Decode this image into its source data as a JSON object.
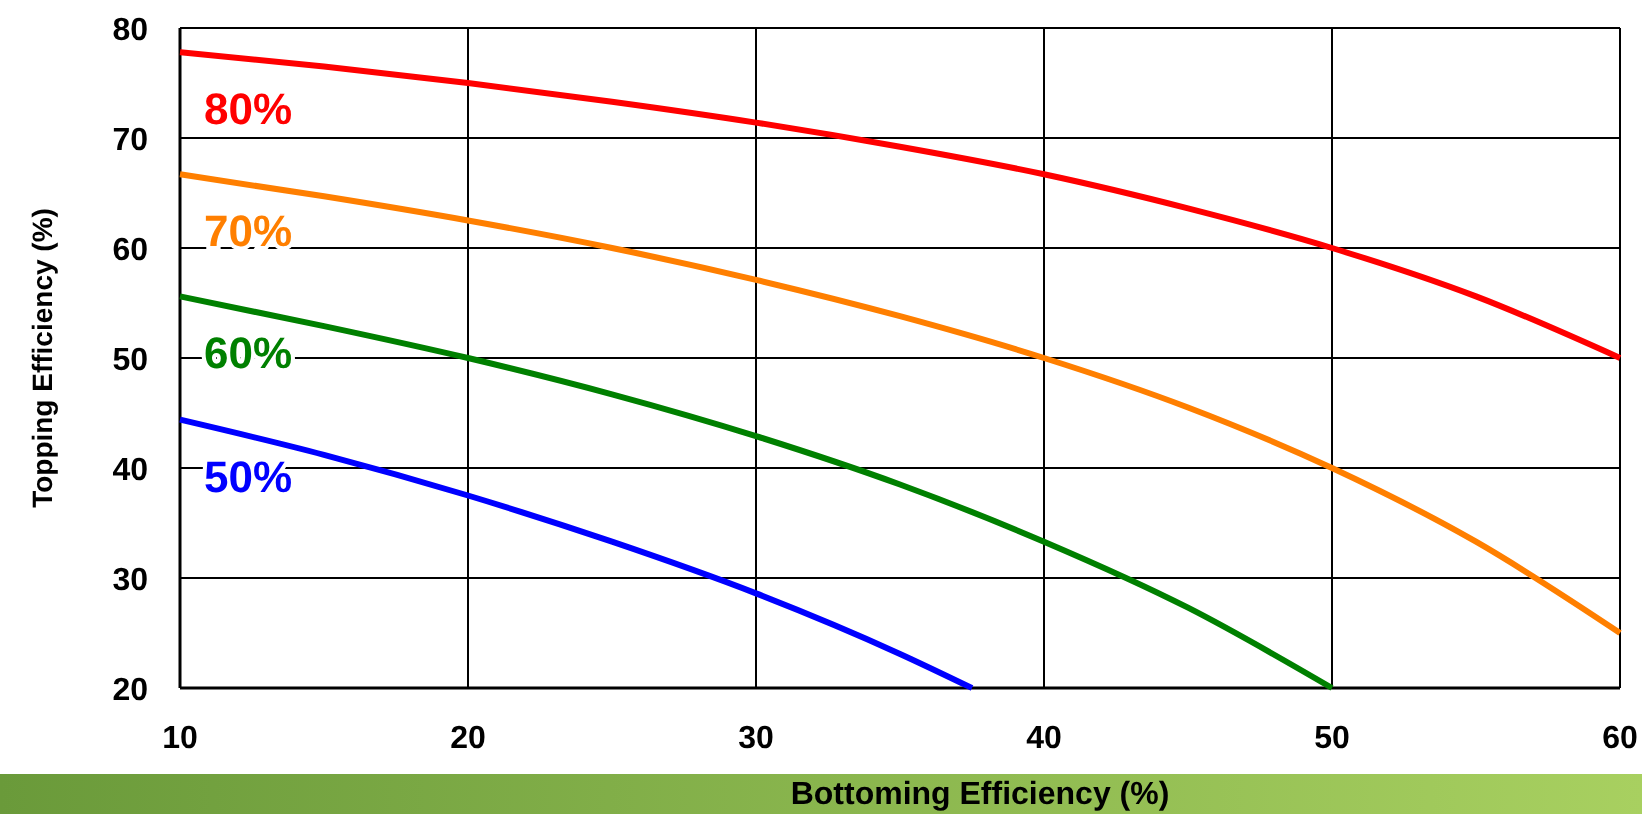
{
  "chart_data": {
    "type": "line",
    "xlabel": "Bottoming Efficiency (%)",
    "ylabel": "Topping Efficiency (%)",
    "xlim": [
      10,
      60
    ],
    "ylim": [
      20,
      80
    ],
    "xticks": [
      10,
      20,
      30,
      40,
      50,
      60
    ],
    "yticks": [
      20,
      30,
      40,
      50,
      60,
      70,
      80
    ],
    "grid": true,
    "marker": "none",
    "line_style": "solid",
    "series": [
      {
        "name": "80%",
        "color": "#ff0000",
        "x": [
          10,
          15,
          20,
          25,
          30,
          35,
          40,
          45,
          50,
          55,
          60
        ],
        "values": [
          77.8,
          76.5,
          75.0,
          73.3,
          71.4,
          69.2,
          66.7,
          63.6,
          60.0,
          55.6,
          50.0
        ]
      },
      {
        "name": "70%",
        "color": "#ff7f00",
        "x": [
          10,
          15,
          20,
          25,
          30,
          35,
          40,
          45,
          50,
          55,
          60
        ],
        "values": [
          66.7,
          64.7,
          62.5,
          60.0,
          57.1,
          53.8,
          50.0,
          45.5,
          40.0,
          33.3,
          25.0
        ]
      },
      {
        "name": "60%",
        "color": "#008000",
        "x": [
          10,
          15,
          20,
          25,
          30,
          35,
          40,
          45,
          50
        ],
        "values": [
          55.6,
          52.9,
          50.0,
          46.7,
          42.9,
          38.5,
          33.3,
          27.3,
          20.0
        ]
      },
      {
        "name": "50%",
        "color": "#0000ff",
        "x": [
          10,
          15,
          20,
          25,
          30,
          35,
          37.5
        ],
        "values": [
          44.4,
          41.2,
          37.5,
          33.3,
          28.6,
          23.1,
          20.0
        ]
      }
    ]
  }
}
